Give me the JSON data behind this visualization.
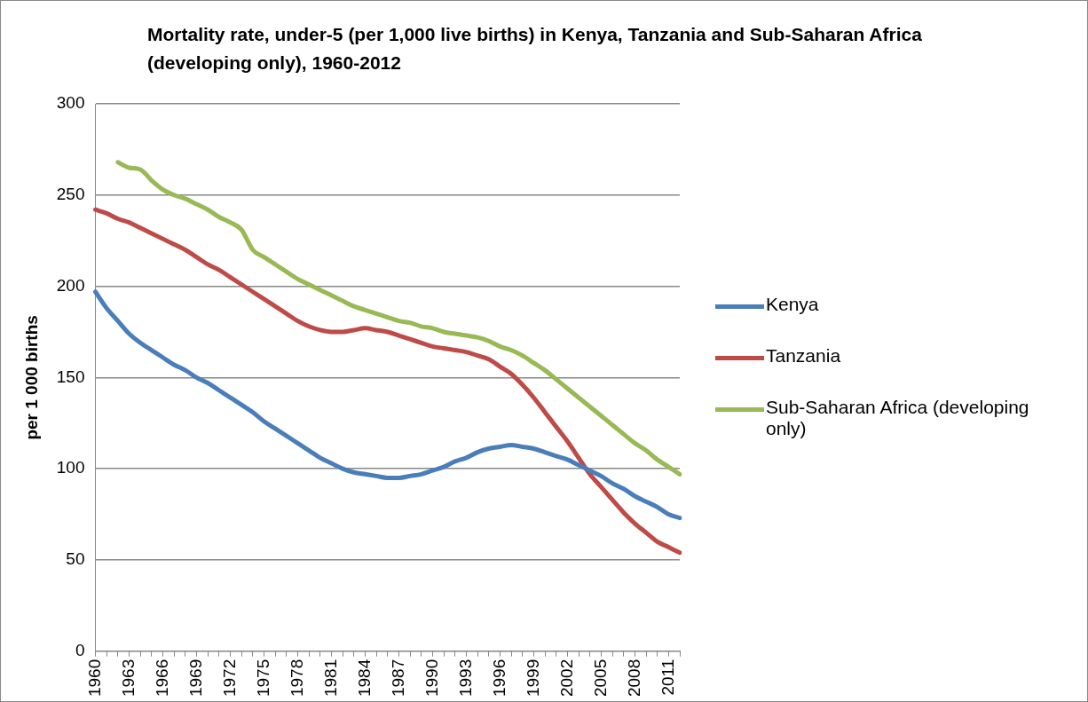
{
  "chart_data": {
    "type": "line",
    "title": "Mortality rate, under-5 (per 1,000 live births) in Kenya, Tanzania and Sub-Saharan Africa (developing only), 1960-2012",
    "ylabel": "per 1 000 births",
    "categories": [
      "1960",
      null,
      null,
      "1963",
      null,
      null,
      "1966",
      null,
      null,
      "1969",
      null,
      null,
      "1972",
      null,
      null,
      "1975",
      null,
      null,
      "1978",
      null,
      null,
      "1981",
      null,
      null,
      "1984",
      null,
      null,
      "1987",
      null,
      null,
      "1990",
      null,
      null,
      "1993",
      null,
      null,
      "1996",
      null,
      null,
      "1999",
      null,
      null,
      "2002",
      null,
      null,
      "2005",
      null,
      null,
      "2008",
      null,
      null,
      "2011",
      null
    ],
    "series": [
      {
        "name": "Kenya",
        "color": "#4a7ebb",
        "values": [
          197,
          188,
          181,
          174,
          169,
          165,
          161,
          157,
          154,
          150,
          147,
          143,
          139,
          135,
          131,
          126,
          122,
          118,
          114,
          110,
          106,
          103,
          100,
          98,
          97,
          96,
          95,
          95,
          96,
          97,
          99,
          101,
          104,
          106,
          109,
          111,
          112,
          113,
          112,
          111,
          109,
          107,
          105,
          102,
          99,
          96,
          92,
          89,
          85,
          82,
          79,
          75,
          73
        ]
      },
      {
        "name": "Tanzania",
        "color": "#be4b48",
        "values": [
          242,
          240,
          237,
          235,
          232,
          229,
          226,
          223,
          220,
          216,
          212,
          209,
          205,
          201,
          197,
          193,
          189,
          185,
          181,
          178,
          176,
          175,
          175,
          176,
          177,
          176,
          175,
          173,
          171,
          169,
          167,
          166,
          165,
          164,
          162,
          160,
          156,
          152,
          146,
          139,
          131,
          123,
          115,
          106,
          97,
          90,
          83,
          76,
          70,
          65,
          60,
          57,
          54
        ]
      },
      {
        "name": "Sub-Saharan Africa (developing only)",
        "color": "#98b954",
        "values": [
          null,
          null,
          268,
          265,
          264,
          258,
          253,
          250,
          248,
          245,
          242,
          238,
          235,
          231,
          220,
          216,
          212,
          208,
          204,
          201,
          198,
          195,
          192,
          189,
          187,
          185,
          183,
          181,
          180,
          178,
          177,
          175,
          174,
          173,
          172,
          170,
          167,
          165,
          162,
          158,
          154,
          149,
          144,
          139,
          134,
          129,
          124,
          119,
          114,
          110,
          105,
          101,
          97
        ]
      }
    ],
    "ylim": [
      0,
      300
    ],
    "yticks": [
      0,
      50,
      100,
      150,
      200,
      250,
      300
    ],
    "grid": "y",
    "legend": "right",
    "marker": "none",
    "line_style": "solid"
  }
}
